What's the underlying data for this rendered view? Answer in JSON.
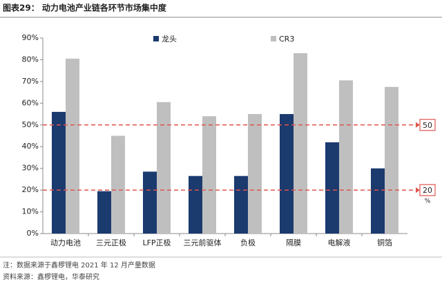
{
  "chart_data": {
    "type": "bar",
    "title": "图表29：  动力电池产业链各环节市场集中度",
    "categories": [
      "动力电池",
      "三元正极",
      "LFP正极",
      "三元前驱体",
      "负极",
      "隔膜",
      "电解液",
      "铜箔"
    ],
    "series": [
      {
        "name": "龙头",
        "color": "#1b3a6e",
        "values": [
          56,
          19.5,
          28.5,
          26.5,
          26.5,
          55,
          42,
          30
        ]
      },
      {
        "name": "CR3",
        "color": "#bfbfbf",
        "values": [
          80.5,
          45,
          60.5,
          54,
          55,
          83,
          70.5,
          67.5
        ]
      }
    ],
    "ylim": [
      0,
      90
    ],
    "yticks": [
      {
        "value": 0,
        "label": "0%"
      },
      {
        "value": 10,
        "label": "10%"
      },
      {
        "value": 20,
        "label": "20%"
      },
      {
        "value": 30,
        "label": "30%"
      },
      {
        "value": 40,
        "label": "40%"
      },
      {
        "value": 50,
        "label": "50%"
      },
      {
        "value": 60,
        "label": "60%"
      },
      {
        "value": 70,
        "label": "70%"
      },
      {
        "value": 80,
        "label": "80%"
      },
      {
        "value": 90,
        "label": "90%"
      }
    ],
    "reference_lines": [
      {
        "value": 50,
        "label": "50",
        "color": "#e0544c"
      },
      {
        "value": 20,
        "label": "20",
        "color": "#e0544c"
      }
    ],
    "reference_unit": "%",
    "notes": [
      "注：数据来源于鑫椤锂电 2021 年 12 月产量数据",
      "资料来源：鑫椤锂电，华泰研究"
    ]
  }
}
